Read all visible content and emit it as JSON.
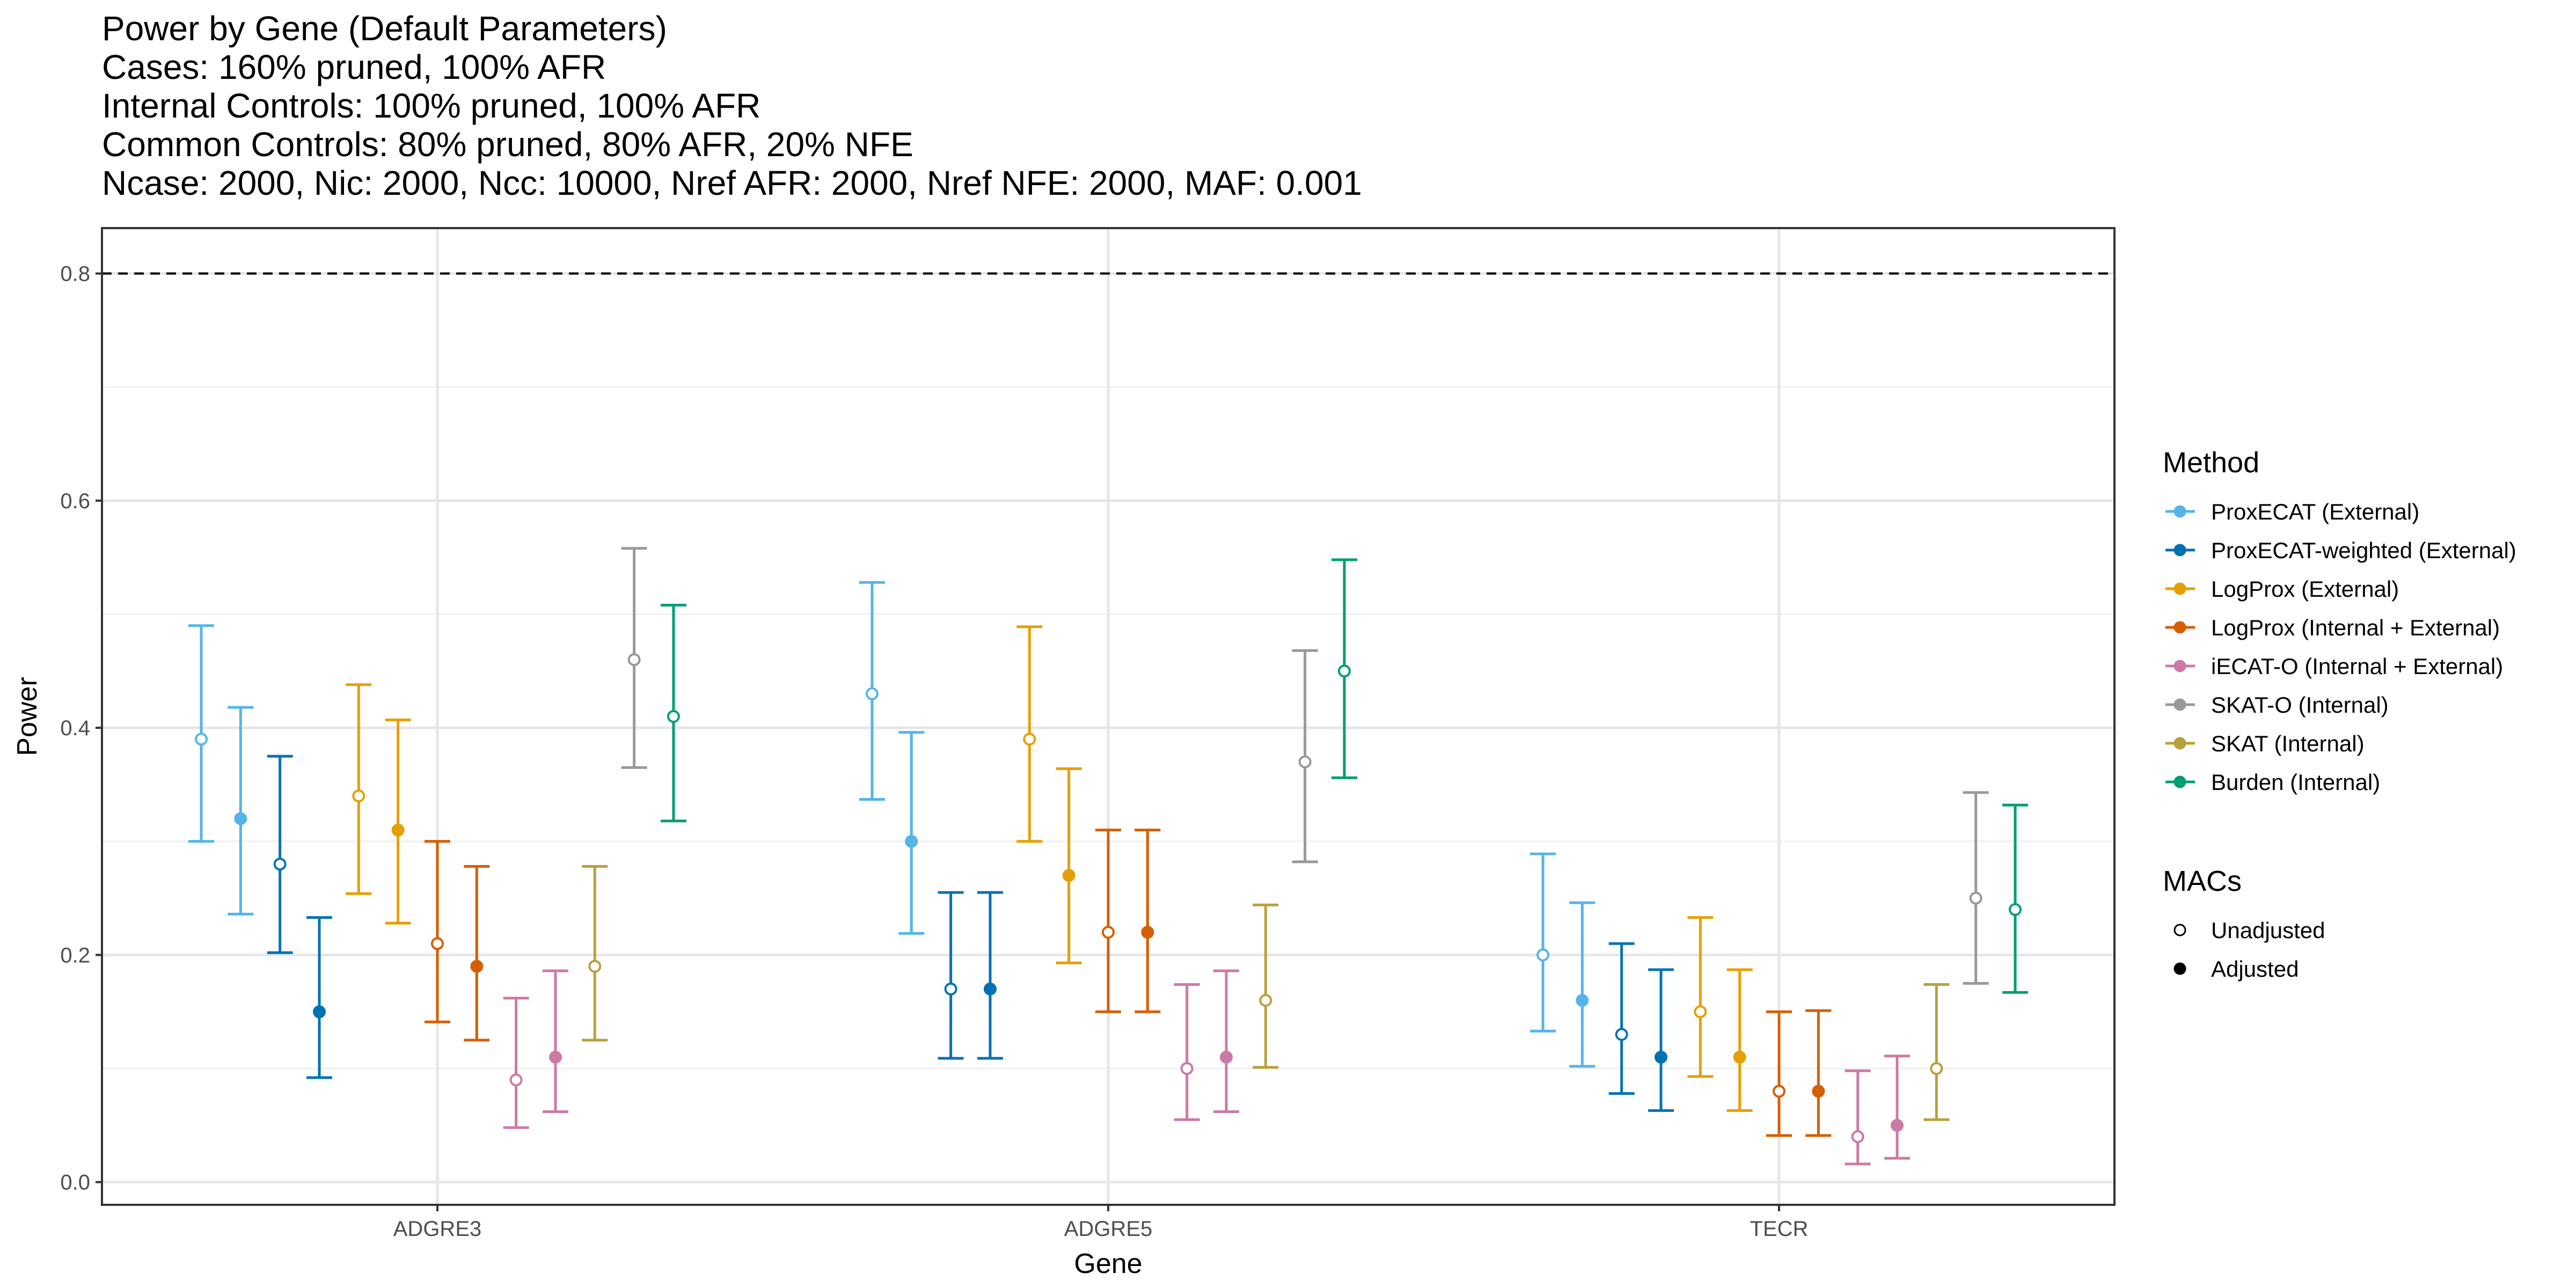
{
  "chart_data": {
    "type": "scatter",
    "subtype": "point-with-error-bars",
    "title_lines": [
      "Power by Gene (Default Parameters)",
      "Cases: 160% pruned, 100% AFR",
      "Internal Controls: 100% pruned, 100% AFR",
      "Common Controls: 80% pruned, 80% AFR, 20% NFE",
      "Ncase: 2000, Nic: 2000, Ncc: 10000, Nref AFR: 2000, Nref NFE: 2000, MAF: 0.001"
    ],
    "xlabel": "Gene",
    "ylabel": "Power",
    "categories": [
      "ADGRE3",
      "ADGRE5",
      "TECR"
    ],
    "ylim": [
      -0.02,
      0.84
    ],
    "y_ticks": [
      0.0,
      0.2,
      0.4,
      0.6,
      0.8
    ],
    "y_tick_labels": [
      "0.0",
      "0.2",
      "0.4",
      "0.6",
      "0.8"
    ],
    "reference_line": {
      "y": 0.8,
      "style": "dashed"
    },
    "grid": true,
    "legend_placement": "right",
    "methods_legend": {
      "title": "Method",
      "entries": [
        {
          "name": "ProxECAT (External)",
          "color": "#56B4E9"
        },
        {
          "name": "ProxECAT-weighted (External)",
          "color": "#0072B2"
        },
        {
          "name": "LogProx (External)",
          "color": "#E69F00"
        },
        {
          "name": "LogProx (Internal + External)",
          "color": "#D55E00"
        },
        {
          "name": "iECAT-O (Internal + External)",
          "color": "#CC79A7"
        },
        {
          "name": "SKAT-O (Internal)",
          "color": "#999999"
        },
        {
          "name": "SKAT (Internal)",
          "color": "#B8A03C"
        },
        {
          "name": "Burden (Internal)",
          "color": "#009E73"
        }
      ]
    },
    "macs_legend": {
      "title": "MACs",
      "entries": [
        {
          "name": "Unadjusted",
          "shape": "open-circle"
        },
        {
          "name": "Adjusted",
          "shape": "filled-circle"
        }
      ]
    },
    "series": [
      {
        "gene": "ADGRE3",
        "points": [
          {
            "method": "ProxECAT (External)",
            "macs": "Unadjusted",
            "y": 0.39,
            "low": 0.3,
            "high": 0.49
          },
          {
            "method": "ProxECAT (External)",
            "macs": "Adjusted",
            "y": 0.32,
            "low": 0.236,
            "high": 0.418
          },
          {
            "method": "ProxECAT-weighted (External)",
            "macs": "Unadjusted",
            "y": 0.28,
            "low": 0.202,
            "high": 0.375
          },
          {
            "method": "ProxECAT-weighted (External)",
            "macs": "Adjusted",
            "y": 0.15,
            "low": 0.092,
            "high": 0.233
          },
          {
            "method": "LogProx (External)",
            "macs": "Unadjusted",
            "y": 0.34,
            "low": 0.254,
            "high": 0.438
          },
          {
            "method": "LogProx (External)",
            "macs": "Adjusted",
            "y": 0.31,
            "low": 0.228,
            "high": 0.407
          },
          {
            "method": "LogProx (Internal + External)",
            "macs": "Unadjusted",
            "y": 0.21,
            "low": 0.141,
            "high": 0.3
          },
          {
            "method": "LogProx (Internal + External)",
            "macs": "Adjusted",
            "y": 0.19,
            "low": 0.125,
            "high": 0.278
          },
          {
            "method": "iECAT-O (Internal + External)",
            "macs": "Unadjusted",
            "y": 0.09,
            "low": 0.048,
            "high": 0.162
          },
          {
            "method": "iECAT-O (Internal + External)",
            "macs": "Adjusted",
            "y": 0.11,
            "low": 0.062,
            "high": 0.186
          },
          {
            "method": "SKAT (Internal)",
            "macs": "Unadjusted",
            "y": 0.19,
            "low": 0.125,
            "high": 0.278
          },
          {
            "method": "SKAT-O (Internal)",
            "macs": "Unadjusted",
            "y": 0.46,
            "low": 0.365,
            "high": 0.558
          },
          {
            "method": "Burden (Internal)",
            "macs": "Unadjusted",
            "y": 0.41,
            "low": 0.318,
            "high": 0.508
          }
        ]
      },
      {
        "gene": "ADGRE5",
        "points": [
          {
            "method": "ProxECAT (External)",
            "macs": "Unadjusted",
            "y": 0.43,
            "low": 0.337,
            "high": 0.528
          },
          {
            "method": "ProxECAT (External)",
            "macs": "Adjusted",
            "y": 0.3,
            "low": 0.219,
            "high": 0.396
          },
          {
            "method": "ProxECAT-weighted (External)",
            "macs": "Unadjusted",
            "y": 0.17,
            "low": 0.109,
            "high": 0.255
          },
          {
            "method": "ProxECAT-weighted (External)",
            "macs": "Adjusted",
            "y": 0.17,
            "low": 0.109,
            "high": 0.255
          },
          {
            "method": "LogProx (External)",
            "macs": "Unadjusted",
            "y": 0.39,
            "low": 0.3,
            "high": 0.489
          },
          {
            "method": "LogProx (External)",
            "macs": "Adjusted",
            "y": 0.27,
            "low": 0.193,
            "high": 0.364
          },
          {
            "method": "LogProx (Internal + External)",
            "macs": "Unadjusted",
            "y": 0.22,
            "low": 0.15,
            "high": 0.31
          },
          {
            "method": "LogProx (Internal + External)",
            "macs": "Adjusted",
            "y": 0.22,
            "low": 0.15,
            "high": 0.31
          },
          {
            "method": "iECAT-O (Internal + External)",
            "macs": "Unadjusted",
            "y": 0.1,
            "low": 0.055,
            "high": 0.174
          },
          {
            "method": "iECAT-O (Internal + External)",
            "macs": "Adjusted",
            "y": 0.11,
            "low": 0.062,
            "high": 0.186
          },
          {
            "method": "SKAT (Internal)",
            "macs": "Unadjusted",
            "y": 0.16,
            "low": 0.101,
            "high": 0.244
          },
          {
            "method": "SKAT-O (Internal)",
            "macs": "Unadjusted",
            "y": 0.37,
            "low": 0.282,
            "high": 0.468
          },
          {
            "method": "Burden (Internal)",
            "macs": "Unadjusted",
            "y": 0.45,
            "low": 0.356,
            "high": 0.548
          }
        ]
      },
      {
        "gene": "TECR",
        "points": [
          {
            "method": "ProxECAT (External)",
            "macs": "Unadjusted",
            "y": 0.2,
            "low": 0.133,
            "high": 0.289
          },
          {
            "method": "ProxECAT (External)",
            "macs": "Adjusted",
            "y": 0.16,
            "low": 0.102,
            "high": 0.246
          },
          {
            "method": "ProxECAT-weighted (External)",
            "macs": "Unadjusted",
            "y": 0.13,
            "low": 0.078,
            "high": 0.21
          },
          {
            "method": "ProxECAT-weighted (External)",
            "macs": "Adjusted",
            "y": 0.11,
            "low": 0.063,
            "high": 0.187
          },
          {
            "method": "LogProx (External)",
            "macs": "Unadjusted",
            "y": 0.15,
            "low": 0.093,
            "high": 0.233
          },
          {
            "method": "LogProx (External)",
            "macs": "Adjusted",
            "y": 0.11,
            "low": 0.063,
            "high": 0.187
          },
          {
            "method": "LogProx (Internal + External)",
            "macs": "Unadjusted",
            "y": 0.08,
            "low": 0.041,
            "high": 0.15
          },
          {
            "method": "LogProx (Internal + External)",
            "macs": "Adjusted",
            "y": 0.08,
            "low": 0.041,
            "high": 0.151
          },
          {
            "method": "iECAT-O (Internal + External)",
            "macs": "Unadjusted",
            "y": 0.04,
            "low": 0.016,
            "high": 0.098
          },
          {
            "method": "iECAT-O (Internal + External)",
            "macs": "Adjusted",
            "y": 0.05,
            "low": 0.021,
            "high": 0.111
          },
          {
            "method": "SKAT (Internal)",
            "macs": "Unadjusted",
            "y": 0.1,
            "low": 0.055,
            "high": 0.174
          },
          {
            "method": "SKAT-O (Internal)",
            "macs": "Unadjusted",
            "y": 0.25,
            "low": 0.175,
            "high": 0.343
          },
          {
            "method": "Burden (Internal)",
            "macs": "Unadjusted",
            "y": 0.24,
            "low": 0.167,
            "high": 0.332
          }
        ]
      }
    ]
  }
}
